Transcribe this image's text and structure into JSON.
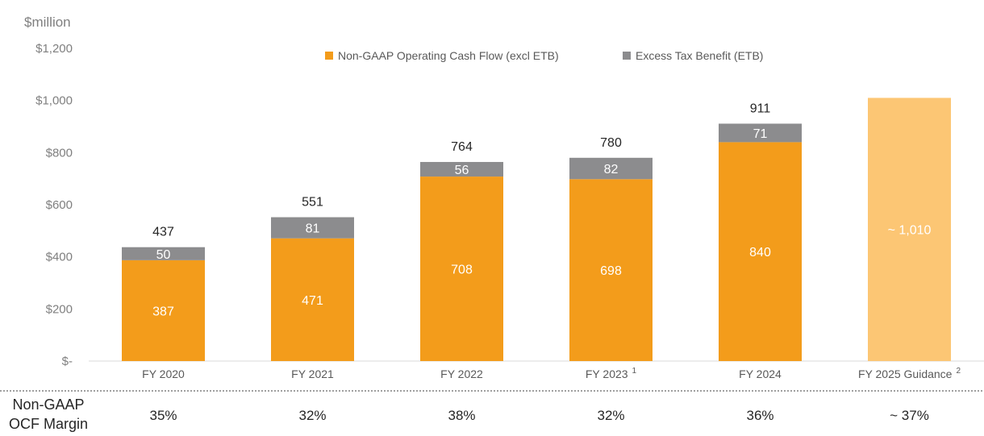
{
  "chart_data": {
    "type": "bar",
    "stacked": true,
    "unit_label": "$million",
    "categories": [
      "FY 2020",
      "FY 2021",
      "FY 2022",
      "FY 2023",
      "FY 2024",
      "FY 2025 Guidance"
    ],
    "category_superscripts": [
      "",
      "",
      "",
      "1",
      "",
      "2"
    ],
    "series": [
      {
        "name": "Non-GAAP Operating Cash Flow (excl ETB)",
        "color": "#f39c1b",
        "values": [
          387,
          471,
          708,
          698,
          840,
          null
        ],
        "labels": [
          "387",
          "471",
          "708",
          "698",
          "840",
          ""
        ]
      },
      {
        "name": "Excess Tax Benefit (ETB)",
        "color": "#8c8c8e",
        "values": [
          50,
          81,
          56,
          82,
          71,
          null
        ],
        "labels": [
          "50",
          "81",
          "56",
          "82",
          "71",
          ""
        ]
      }
    ],
    "guidance": {
      "category": "FY 2025 Guidance",
      "value": 1010,
      "label": "~ 1,010",
      "color": "#fcc674"
    },
    "totals": [
      "437",
      "551",
      "764",
      "780",
      "911",
      ""
    ],
    "y_ticks": [
      0,
      200,
      400,
      600,
      800,
      1000,
      1200
    ],
    "y_tick_labels": [
      "$-",
      "$200",
      "$400",
      "$600",
      "$800",
      "$1,000",
      "$1,200"
    ],
    "ylim": [
      0,
      1200
    ],
    "legend_position": "top",
    "grid": false,
    "margin_row": {
      "label_line1": "Non-GAAP",
      "label_line2": "OCF Margin",
      "values": [
        "35%",
        "32%",
        "38%",
        "32%",
        "36%",
        "~ 37%"
      ]
    }
  }
}
